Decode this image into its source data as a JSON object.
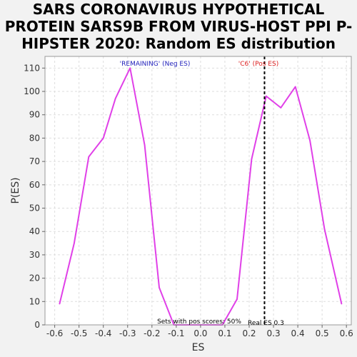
{
  "chart_data": {
    "type": "line",
    "title_lines": [
      "SARS CORONAVIRUS HYPOTHETICAL",
      "PROTEIN SARS9B FROM VIRUS-HOST PPI P-",
      "HIPSTER 2020: Random ES distribution"
    ],
    "xlabel": "ES",
    "ylabel": "P(ES)",
    "xlim": [
      -0.64,
      0.62
    ],
    "ylim": [
      0,
      115
    ],
    "xticks": [
      -0.6,
      -0.5,
      -0.4,
      -0.3,
      -0.2,
      -0.1,
      0.0,
      0.1,
      0.2,
      0.3,
      0.4,
      0.5,
      0.6
    ],
    "xtick_labels": [
      "-0.6",
      "-0.5",
      "-0.4",
      "-0.3",
      "-0.2",
      "-0.1",
      "0.0",
      "0.1",
      "0.2",
      "0.3",
      "0.4",
      "0.5",
      "0.6"
    ],
    "yticks": [
      0,
      10,
      20,
      30,
      40,
      50,
      60,
      70,
      80,
      90,
      100,
      110
    ],
    "ytick_labels": [
      "0",
      "10",
      "20",
      "30",
      "40",
      "50",
      "60",
      "70",
      "80",
      "90",
      "100",
      "110"
    ],
    "grid": true,
    "series": [
      {
        "color": "#e040e8",
        "x": [
          -0.58,
          -0.52,
          -0.46,
          -0.4,
          -0.35,
          -0.29,
          -0.23,
          -0.17,
          -0.11,
          -0.05,
          0.02,
          0.09,
          0.15,
          0.21,
          0.27,
          0.33,
          0.39,
          0.45,
          0.51,
          0.58
        ],
        "y": [
          9,
          35,
          72,
          80,
          97,
          110,
          77,
          16,
          0,
          0,
          0,
          0,
          11,
          71,
          98,
          93,
          102,
          79,
          41,
          9
        ]
      }
    ],
    "reference_line": {
      "x": 0.263,
      "style": "dashed",
      "color": "#000000",
      "label": "Real ES 0.3"
    },
    "annotations": {
      "neg_label": "'REMAINING' (Neg ES)",
      "neg_color": "#2222bb",
      "pos_label": "'C6' (Pos ES)",
      "pos_color": "#dd2222",
      "sets_label": "Sets with pos scores: 50%"
    }
  }
}
